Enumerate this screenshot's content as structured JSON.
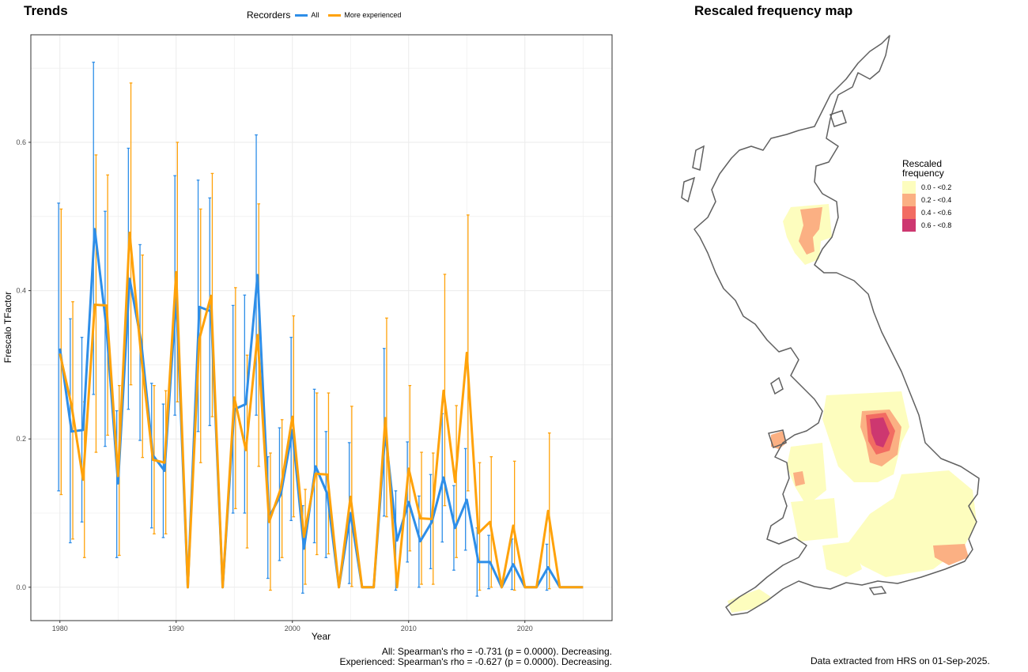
{
  "left_title": "Trends",
  "right_title": "Rescaled frequency map",
  "legend": {
    "title": "Recorders",
    "items": [
      "All",
      "More experienced"
    ]
  },
  "colors": {
    "all": "#2e8ee8",
    "experienced": "#ffa20a",
    "grid": "#ebebeb",
    "map_line": "#606060"
  },
  "chart_data": {
    "type": "line",
    "xlabel": "Year",
    "ylabel": "Frescalo TFactor",
    "xlim": [
      1977.5,
      2027.5
    ],
    "ylim": [
      -0.045,
      0.745
    ],
    "x_ticks": [
      "1980",
      "1990",
      "2000",
      "2010",
      "2020"
    ],
    "y_ticks": [
      "0.0",
      "0.2",
      "0.4",
      "0.6"
    ],
    "grid": true,
    "series": [
      {
        "name": "All",
        "color": "#2e8ee8",
        "x": [
          1980,
          1981,
          1982,
          1983,
          1984,
          1985,
          1986,
          1987,
          1988,
          1989,
          1990,
          1991,
          1992,
          1993,
          1994,
          1995,
          1996,
          1997,
          1998,
          1999,
          2000,
          2001,
          2002,
          2003,
          2004,
          2005,
          2006,
          2007,
          2008,
          2009,
          2010,
          2011,
          2012,
          2013,
          2014,
          2015,
          2016,
          2017,
          2018,
          2019,
          2020,
          2021,
          2022,
          2023,
          2024,
          2025
        ],
        "y": [
          0.322,
          0.21,
          0.212,
          0.483,
          0.35,
          0.14,
          0.416,
          0.33,
          0.178,
          0.157,
          0.393,
          0.0,
          0.378,
          0.372,
          0.0,
          0.24,
          0.247,
          0.421,
          0.094,
          0.125,
          0.212,
          0.052,
          0.163,
          0.126,
          0.0,
          0.1,
          0.0,
          0.0,
          0.209,
          0.063,
          0.115,
          0.062,
          0.088,
          0.148,
          0.08,
          0.118,
          0.034,
          0.034,
          0.0,
          0.031,
          0.0,
          0.0,
          0.027,
          0.0,
          0.0,
          0.0
        ],
        "upper": [
          0.518,
          0.362,
          0.337,
          0.708,
          0.507,
          0.238,
          0.592,
          0.462,
          0.275,
          0.247,
          0.555,
          0.0,
          0.549,
          0.525,
          0.0,
          0.38,
          0.394,
          0.61,
          0.176,
          0.215,
          0.337,
          0.11,
          0.267,
          0.21,
          0.0,
          0.195,
          0.0,
          0.0,
          0.322,
          0.13,
          0.196,
          0.123,
          0.152,
          0.234,
          0.137,
          0.187,
          0.08,
          0.07,
          0.0,
          0.065,
          0.0,
          0.0,
          0.058,
          0.0,
          0.0,
          0.0
        ],
        "lower": [
          0.13,
          0.06,
          0.088,
          0.26,
          0.19,
          0.04,
          0.24,
          0.198,
          0.08,
          0.067,
          0.232,
          0.0,
          0.21,
          0.218,
          0.0,
          0.1,
          0.1,
          0.232,
          0.012,
          0.036,
          0.09,
          -0.008,
          0.06,
          0.04,
          0.0,
          0.005,
          0.0,
          0.0,
          0.096,
          -0.004,
          0.034,
          0.0,
          0.025,
          0.061,
          0.023,
          0.05,
          -0.012,
          -0.002,
          0.0,
          -0.003,
          0.0,
          0.0,
          -0.004,
          0.0,
          0.0,
          0.0
        ]
      },
      {
        "name": "More experienced",
        "color": "#ffa20a",
        "x": [
          1980,
          1981,
          1982,
          1983,
          1984,
          1985,
          1986,
          1987,
          1988,
          1989,
          1990,
          1991,
          1992,
          1993,
          1994,
          1995,
          1996,
          1997,
          1998,
          1999,
          2000,
          2001,
          2002,
          2003,
          2004,
          2005,
          2006,
          2007,
          2008,
          2009,
          2010,
          2011,
          2012,
          2013,
          2014,
          2015,
          2016,
          2017,
          2018,
          2019,
          2020,
          2021,
          2022,
          2023,
          2024,
          2025
        ],
        "y": [
          0.315,
          0.245,
          0.145,
          0.381,
          0.38,
          0.15,
          0.478,
          0.31,
          0.172,
          0.168,
          0.425,
          0.0,
          0.335,
          0.393,
          0.0,
          0.256,
          0.185,
          0.34,
          0.088,
          0.133,
          0.23,
          0.068,
          0.153,
          0.152,
          0.0,
          0.122,
          0.0,
          0.0,
          0.228,
          0.0,
          0.16,
          0.093,
          0.092,
          0.265,
          0.142,
          0.316,
          0.073,
          0.088,
          0.0,
          0.083,
          0.0,
          0.0,
          0.103,
          0.0,
          0.0,
          0.0
        ],
        "upper": [
          0.51,
          0.385,
          0.25,
          0.583,
          0.556,
          0.272,
          0.68,
          0.448,
          0.272,
          0.265,
          0.6,
          0.0,
          0.51,
          0.558,
          0.0,
          0.404,
          0.313,
          0.517,
          0.181,
          0.226,
          0.366,
          0.132,
          0.262,
          0.262,
          0.0,
          0.244,
          0.0,
          0.0,
          0.363,
          0.0,
          0.272,
          0.182,
          0.181,
          0.422,
          0.245,
          0.502,
          0.168,
          0.176,
          0.0,
          0.17,
          0.0,
          0.0,
          0.208,
          0.0,
          0.0,
          0.0
        ],
        "lower": [
          0.125,
          0.065,
          0.04,
          0.182,
          0.205,
          0.043,
          0.273,
          0.175,
          0.072,
          0.072,
          0.25,
          0.0,
          0.168,
          0.23,
          0.0,
          0.106,
          0.053,
          0.163,
          -0.004,
          0.04,
          0.095,
          0.004,
          0.044,
          0.045,
          0.0,
          0.001,
          0.0,
          0.0,
          0.095,
          0.0,
          0.049,
          0.004,
          0.004,
          0.11,
          0.04,
          0.13,
          -0.004,
          0.0,
          0.0,
          -0.004,
          0.0,
          0.0,
          -0.002,
          0.0,
          0.0,
          0.0
        ]
      }
    ]
  },
  "stats": {
    "all": "All: Spearman's rho = -0.731 (p = 0.0000). Decreasing.",
    "experienced": "Experienced: Spearman's rho = -0.627 (p = 0.0000). Decreasing."
  },
  "map_legend": {
    "title_line1": "Rescaled",
    "title_line2": "frequency",
    "items": [
      {
        "label": "0.0 - <0.2",
        "color": "#fdfdbe"
      },
      {
        "label": "0.2 - <0.4",
        "color": "#fbb083"
      },
      {
        "label": "0.4 - <0.6",
        "color": "#f26c62"
      },
      {
        "label": "0.6 - <0.8",
        "color": "#cd3770"
      }
    ]
  },
  "data_note": "Data extracted from HRS on 01-Sep-2025."
}
